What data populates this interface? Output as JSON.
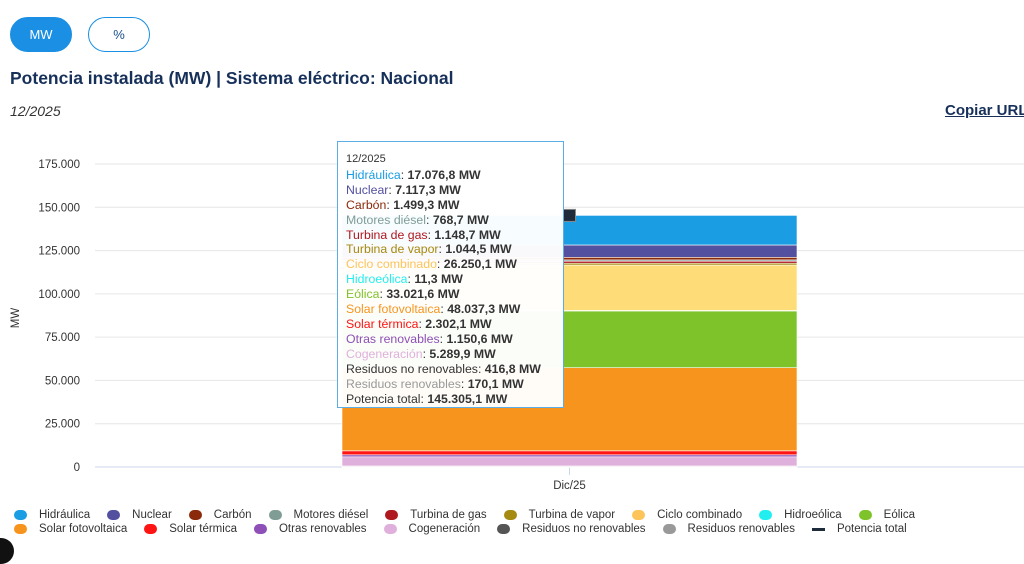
{
  "toolbar": {
    "mw_label": "MW",
    "pct_label": "%"
  },
  "header": {
    "title": "Potencia instalada (MW) | Sistema eléctrico: Nacional",
    "date": "12/2025",
    "copy_url": "Copiar URL"
  },
  "chart_data": {
    "type": "bar",
    "stacked": true,
    "title": "Potencia instalada (MW) | Sistema eléctrico: Nacional",
    "xlabel": "",
    "ylabel": "MW",
    "categories": [
      "Dic/25"
    ],
    "ylim": [
      0,
      175000
    ],
    "yticks": [
      0,
      25000,
      50000,
      75000,
      100000,
      125000,
      150000,
      175000
    ],
    "ytick_labels": [
      "0",
      "25.000",
      "50.000",
      "75.000",
      "100.000",
      "125.000",
      "150.000",
      "175.000"
    ],
    "grid": true,
    "legend_position": "bottom",
    "series": [
      {
        "name": "Hidráulica",
        "values": [
          17076.8
        ],
        "label": "17.076,8 MW",
        "color": "#1a9de3"
      },
      {
        "name": "Nuclear",
        "values": [
          7117.3
        ],
        "label": "7.117,3 MW",
        "color": "#5350a0"
      },
      {
        "name": "Carbón",
        "values": [
          1499.3
        ],
        "label": "1.499,3 MW",
        "color": "#8b2a0a"
      },
      {
        "name": "Motores diésel",
        "values": [
          768.7
        ],
        "label": "768,7 MW",
        "color": "#7f9c95"
      },
      {
        "name": "Turbina de gas",
        "values": [
          1148.7
        ],
        "label": "1.148,7 MW",
        "color": "#b01820"
      },
      {
        "name": "Turbina de vapor",
        "values": [
          1044.5
        ],
        "label": "1.044,5 MW",
        "color": "#a58a10"
      },
      {
        "name": "Ciclo combinado",
        "values": [
          26250.1
        ],
        "label": "26.250,1 MW",
        "color": "#fedd78"
      },
      {
        "name": "Hidroeólica",
        "values": [
          11.3
        ],
        "label": "11,3 MW",
        "color": "#22eef0"
      },
      {
        "name": "Eólica",
        "values": [
          33021.6
        ],
        "label": "33.021,6 MW",
        "color": "#7fc32b"
      },
      {
        "name": "Solar fotovoltaica",
        "values": [
          48037.3
        ],
        "label": "48.037,3 MW",
        "color": "#f7941d"
      },
      {
        "name": "Solar térmica",
        "values": [
          2302.1
        ],
        "label": "2.302,1 MW",
        "color": "#ff1414"
      },
      {
        "name": "Otras renovables",
        "values": [
          1150.6
        ],
        "label": "1.150,6 MW",
        "color": "#8e4fb6"
      },
      {
        "name": "Cogeneración",
        "values": [
          5289.9
        ],
        "label": "5.289,9 MW",
        "color": "#e0b0dc"
      },
      {
        "name": "Residuos no renovables",
        "values": [
          416.8
        ],
        "label": "416,8 MW",
        "color": "#555555"
      },
      {
        "name": "Residuos renovables",
        "values": [
          170.1
        ],
        "label": "170,1 MW",
        "color": "#999999"
      }
    ],
    "total": {
      "name": "Potencia total",
      "values": [
        145305.1
      ],
      "label": "145.305,1 MW",
      "color": "#1e2b3a"
    },
    "tooltip": {
      "header": "12/2025"
    }
  }
}
